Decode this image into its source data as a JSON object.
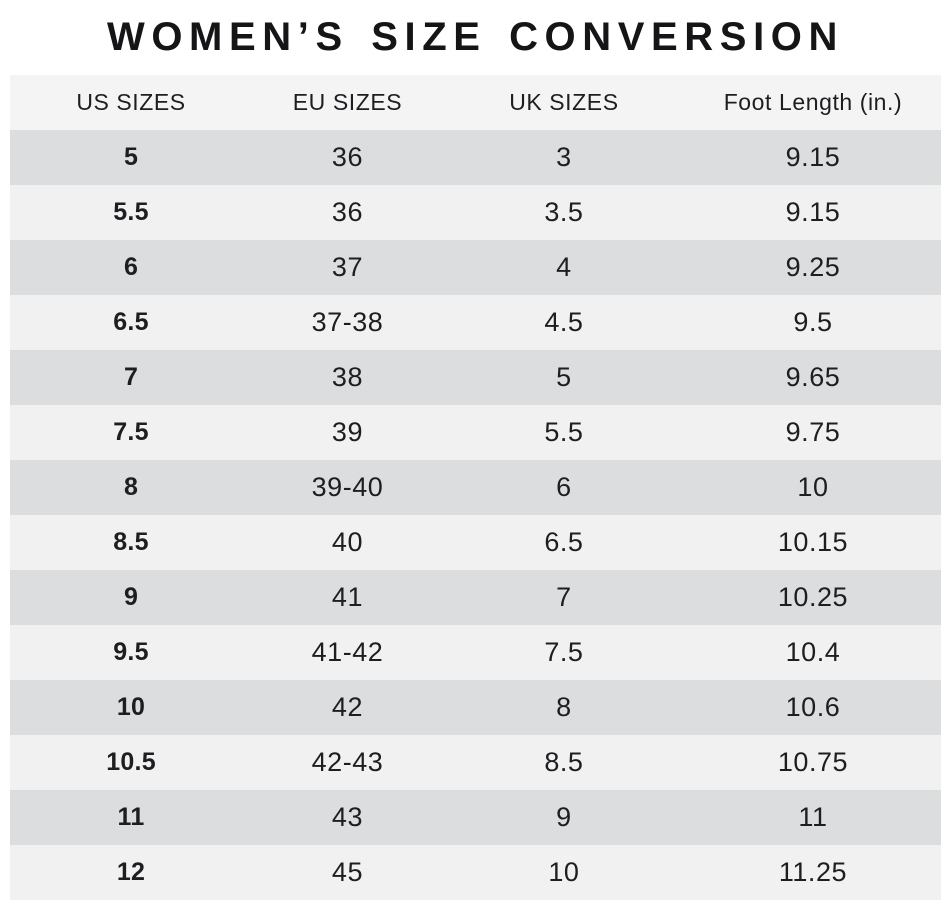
{
  "title": "WOMEN’S SIZE CONVERSION",
  "chart_data": {
    "type": "table",
    "title": "WOMEN’S SIZE CONVERSION",
    "columns": [
      "US SIZES",
      "EU SIZES",
      "UK SIZES",
      "Foot Length (in.)"
    ],
    "rows": [
      [
        "5",
        "36",
        "3",
        "9.15"
      ],
      [
        "5.5",
        "36",
        "3.5",
        "9.15"
      ],
      [
        "6",
        "37",
        "4",
        "9.25"
      ],
      [
        "6.5",
        "37-38",
        "4.5",
        "9.5"
      ],
      [
        "7",
        "38",
        "5",
        "9.65"
      ],
      [
        "7.5",
        "39",
        "5.5",
        "9.75"
      ],
      [
        "8",
        "39-40",
        "6",
        "10"
      ],
      [
        "8.5",
        "40",
        "6.5",
        "10.15"
      ],
      [
        "9",
        "41",
        "7",
        "10.25"
      ],
      [
        "9.5",
        "41-42",
        "7.5",
        "10.4"
      ],
      [
        "10",
        "42",
        "8",
        "10.6"
      ],
      [
        "10.5",
        "42-43",
        "8.5",
        "10.75"
      ],
      [
        "11",
        "43",
        "9",
        "11"
      ],
      [
        "12",
        "45",
        "10",
        "11.25"
      ]
    ],
    "layout": {
      "row_striping": "alternating",
      "first_data_row_shade": "dark",
      "grid": "off",
      "header_position": "top"
    }
  },
  "colors": {
    "page_bg": "#ffffff",
    "header_bg": "#f4f4f5",
    "row_dark": "#dcddde",
    "row_light": "#f1f1f2",
    "text": "#1d1e20",
    "title_text": "#151517"
  }
}
